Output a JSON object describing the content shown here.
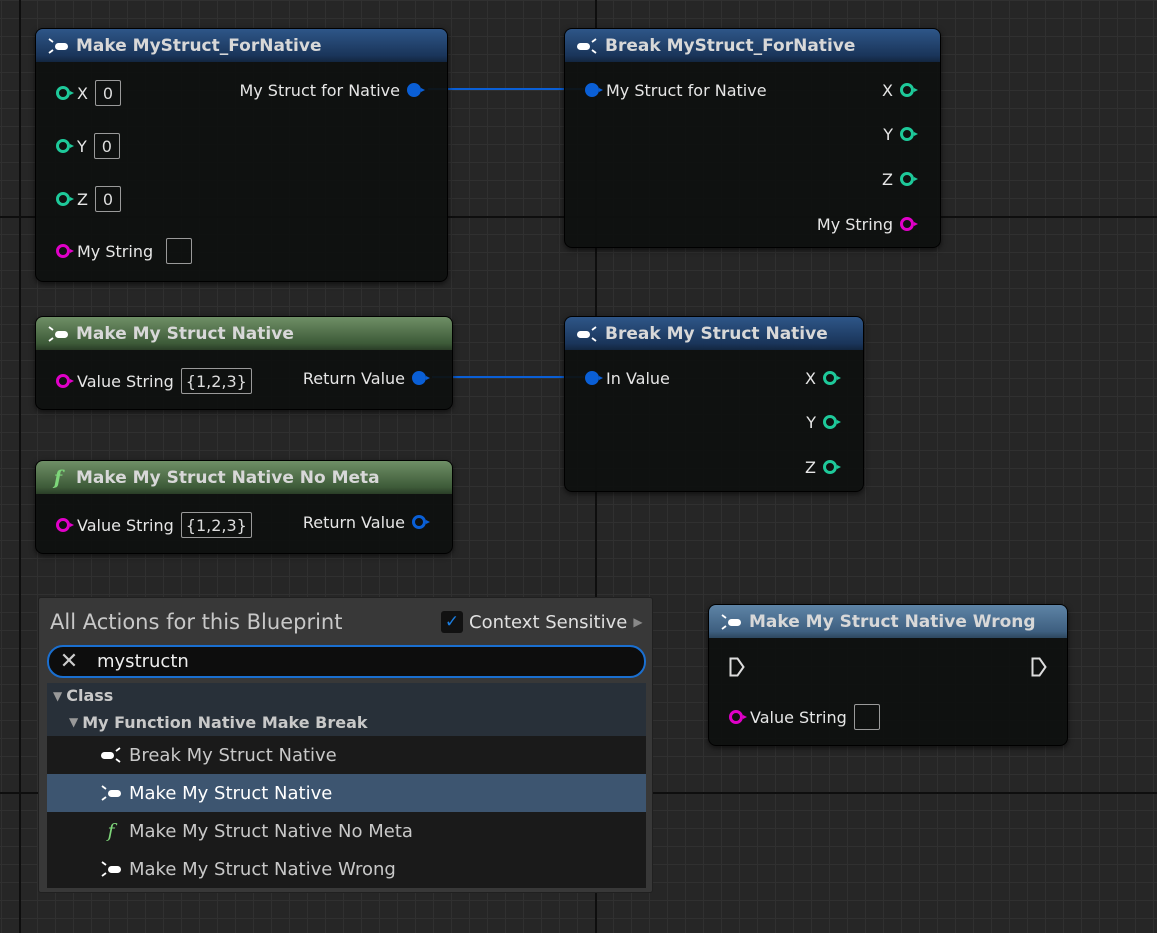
{
  "colors": {
    "struct_pin": "#0a5fd6",
    "int_pin": "#1ec99a",
    "string_pin": "#e000c8",
    "accent": "#1a6fd0",
    "selected_row": "#3d5570"
  },
  "nodes": {
    "make_fornative": {
      "title": "Make MyStruct_ForNative",
      "icon": "make-struct-icon",
      "inputs": [
        {
          "label": "X",
          "value": "0"
        },
        {
          "label": "Y",
          "value": "0"
        },
        {
          "label": "Z",
          "value": "0"
        },
        {
          "label": "My String",
          "value": ""
        }
      ],
      "output": "My Struct for Native"
    },
    "break_fornative": {
      "title": "Break MyStruct_ForNative",
      "icon": "break-struct-icon",
      "input": "My Struct for Native",
      "outputs": [
        "X",
        "Y",
        "Z",
        "My String"
      ]
    },
    "make_native": {
      "title": "Make My Struct Native",
      "icon": "make-struct-icon",
      "input": {
        "label": "Value String",
        "value": "{1,2,3}"
      },
      "output": "Return Value"
    },
    "break_native": {
      "title": "Break My Struct Native",
      "icon": "break-struct-icon",
      "input": "In Value",
      "outputs": [
        "X",
        "Y",
        "Z"
      ]
    },
    "make_native_nometa": {
      "title": "Make My Struct Native No Meta",
      "icon": "function-icon",
      "input": {
        "label": "Value String",
        "value": "{1,2,3}"
      },
      "output": "Return Value"
    },
    "make_native_wrong": {
      "title": "Make My Struct Native Wrong",
      "icon": "make-struct-icon",
      "input": {
        "label": "Value String",
        "value": ""
      }
    }
  },
  "menu": {
    "title": "All Actions for this Blueprint",
    "context_sensitive": {
      "label": "Context Sensitive",
      "checked": true
    },
    "search": {
      "value": "mystructn"
    },
    "category": "Class",
    "subcategory": "My Function Native Make Break",
    "items": [
      {
        "label": "Break My Struct Native",
        "icon": "break-struct-icon"
      },
      {
        "label": "Make My Struct Native",
        "icon": "make-struct-icon",
        "selected": true
      },
      {
        "label": "Make My Struct Native No Meta",
        "icon": "function-icon"
      },
      {
        "label": "Make My Struct Native Wrong",
        "icon": "make-struct-icon"
      }
    ]
  }
}
